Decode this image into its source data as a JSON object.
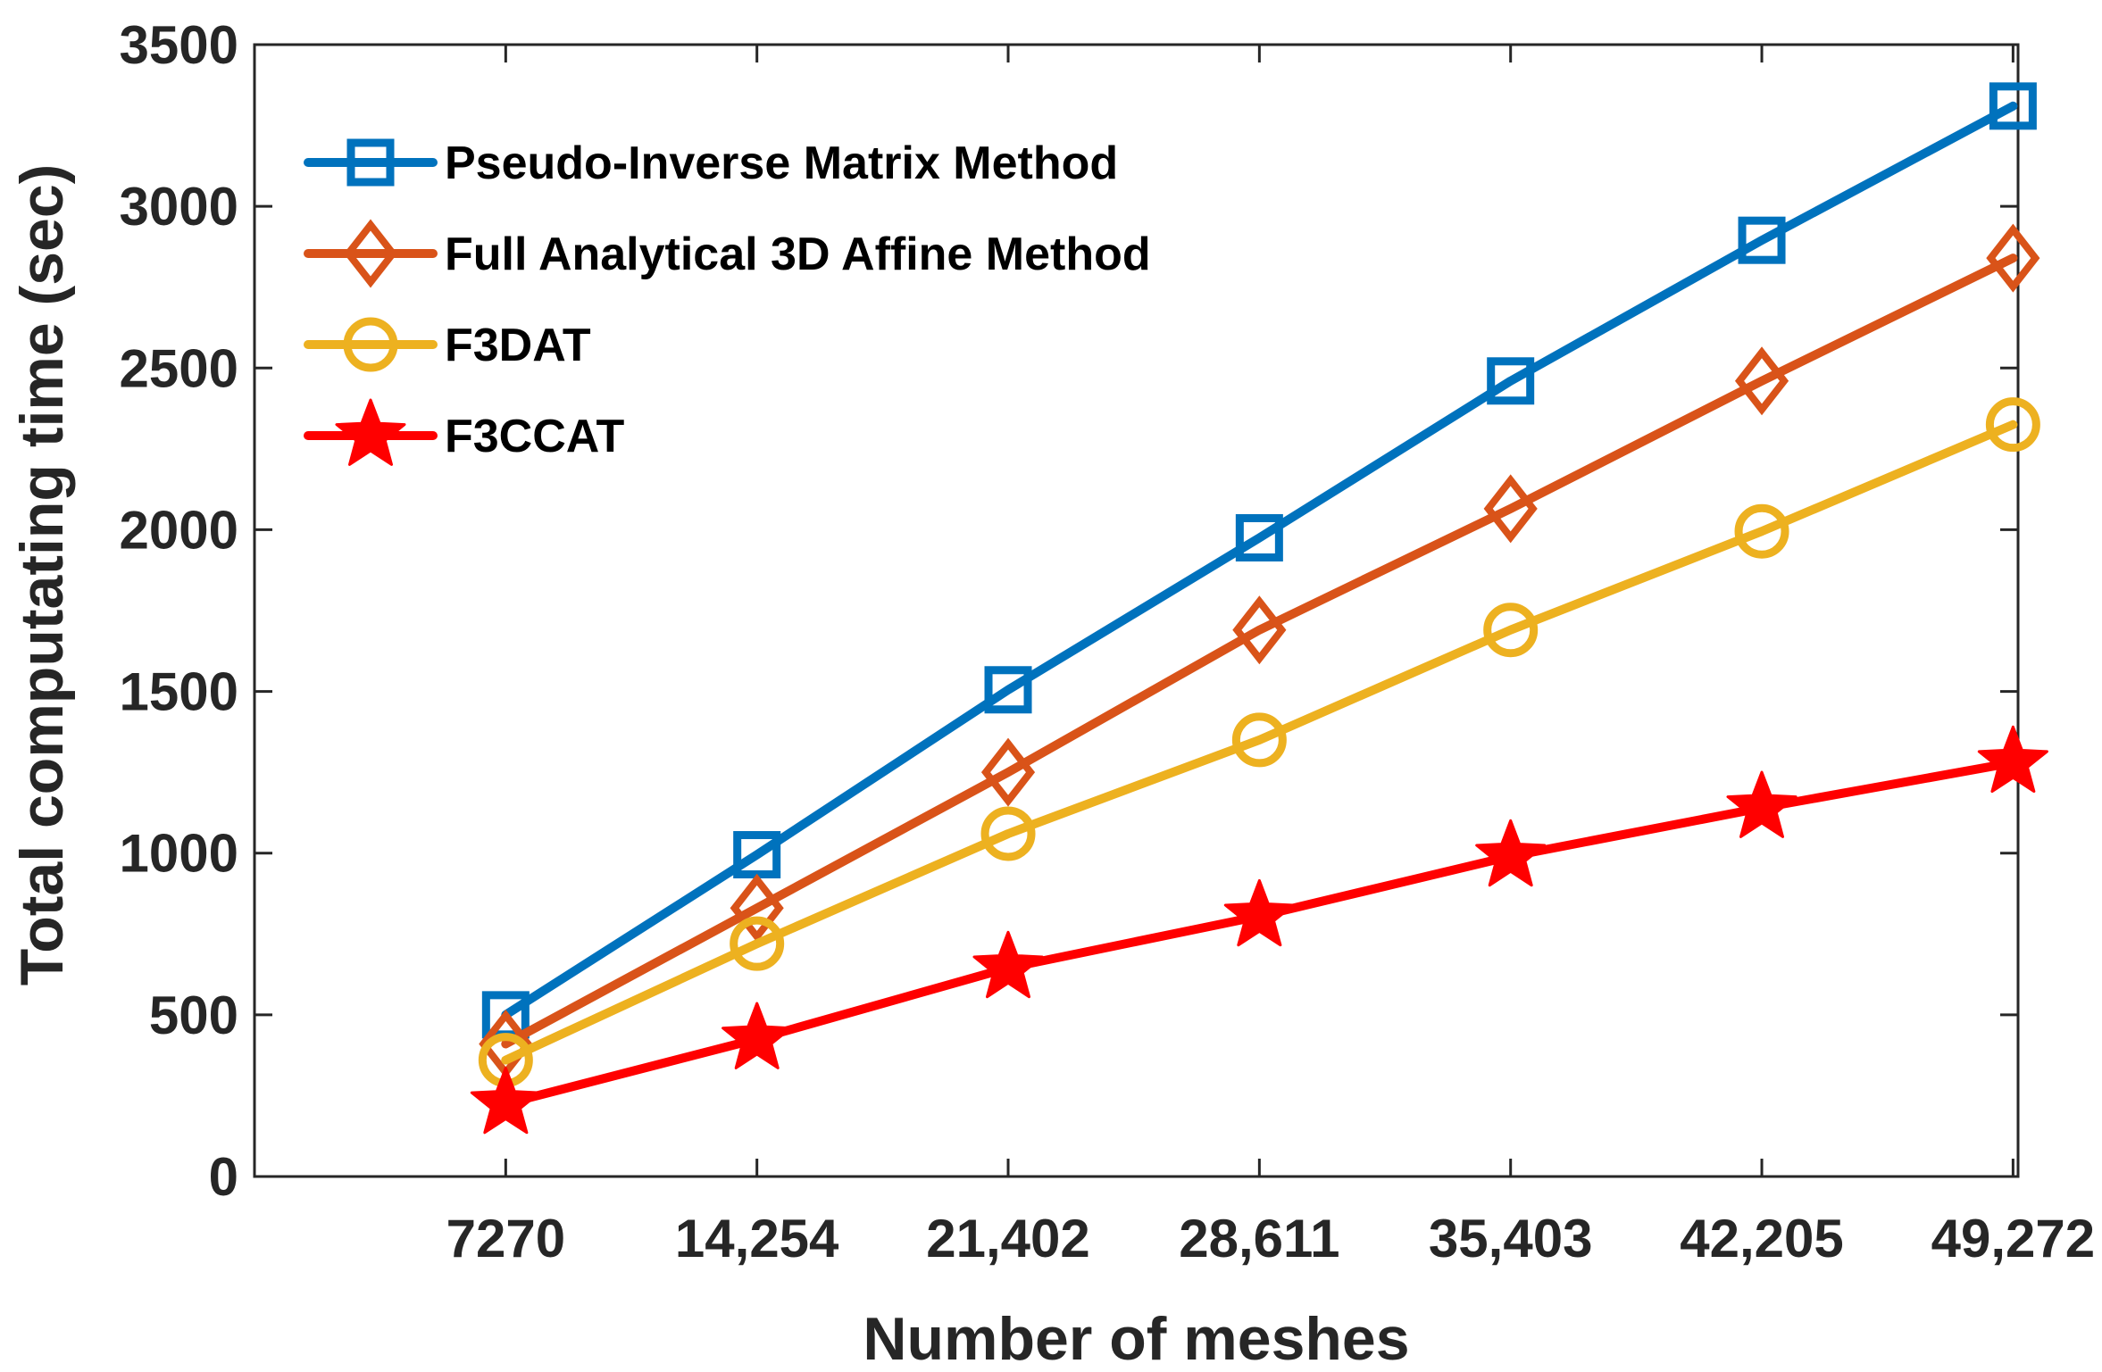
{
  "chart_data": {
    "type": "line",
    "title": "",
    "xlabel": "Number of meshes",
    "ylabel": "Total computating time (sec)",
    "categories": [
      "7270",
      "14,254",
      "21,402",
      "28,611",
      "35,403",
      "42,205",
      "49,272"
    ],
    "x": [
      7270,
      14254,
      21402,
      28611,
      35403,
      42205,
      49272
    ],
    "ylim": [
      0,
      3500
    ],
    "yticks": [
      "0",
      "500",
      "1000",
      "1500",
      "2000",
      "2500",
      "3000",
      "3500"
    ],
    "legend_position": "top-left",
    "series": [
      {
        "name": "Pseudo-Inverse Matrix Method",
        "marker": "square",
        "color": "#0072BD",
        "values": [
          500,
          995,
          1505,
          1975,
          2460,
          2895,
          3310
        ]
      },
      {
        "name": "Full Analytical 3D Affine Method",
        "marker": "diamond",
        "color": "#D95319",
        "values": [
          410,
          830,
          1250,
          1690,
          2065,
          2460,
          2840
        ]
      },
      {
        "name": "F3DAT",
        "marker": "circle",
        "color": "#EDB120",
        "values": [
          360,
          720,
          1060,
          1350,
          1690,
          1995,
          2325
        ]
      },
      {
        "name": "F3CCAT",
        "marker": "star",
        "color": "#FF0000",
        "values": [
          225,
          425,
          645,
          805,
          990,
          1140,
          1280
        ]
      }
    ]
  }
}
